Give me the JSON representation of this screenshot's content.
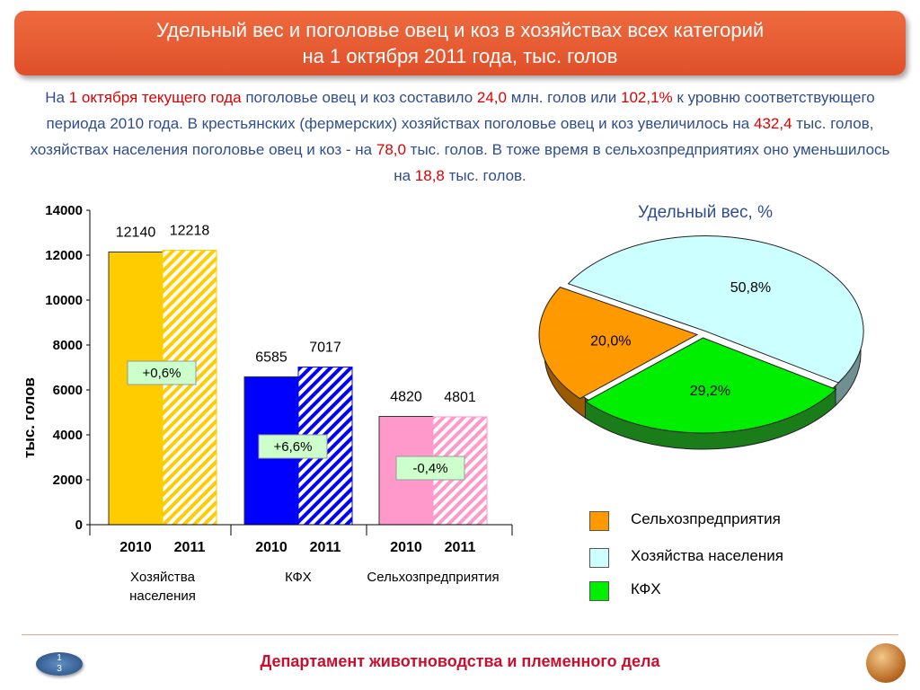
{
  "header": {
    "title_line1": "Удельный вес и поголовье овец и коз в хозяйствах всех категорий",
    "title_line2": "на 1 октября 2011 года, тыс. голов"
  },
  "intro": {
    "p1": "На ",
    "h1": "1 октября текущего года",
    "p2": " поголовье овец и коз составило ",
    "h2": "24,0",
    "p3": " млн. голов или ",
    "h3": "102,1%",
    "p4": " к уровню соответствующего периода 2010 года.  В крестьянских (фермерских) хозяйствах поголовье овец и коз увеличилось на ",
    "h4": "432,4",
    "p5": " тыс. голов, хозяйствах населения поголовье овец и коз - на ",
    "h5": "78,0",
    "p6": " тыс. голов. В тоже время в сельхозпредприятиях оно уменьшилось на ",
    "h6": "18,8",
    "p7": " тыс. голов."
  },
  "chart_data": [
    {
      "type": "bar",
      "ylabel": "тыс. голов",
      "ylim": [
        0,
        14000
      ],
      "yticks": [
        "0",
        "2000",
        "4000",
        "6000",
        "8000",
        "10000",
        "12000",
        "14000"
      ],
      "groups": [
        {
          "name": "Хозяйства населения",
          "name_lines": [
            "Хозяйства",
            "населения"
          ],
          "x": [
            "2010",
            "2011"
          ],
          "values": [
            12140,
            12218
          ],
          "labels": [
            "12140",
            "12218"
          ],
          "change": "+0,6%",
          "color": "#ffcc00"
        },
        {
          "name": "КФХ",
          "name_lines": [
            "КФХ"
          ],
          "x": [
            "2010",
            "2011"
          ],
          "values": [
            6585,
            7017
          ],
          "labels": [
            "6585",
            "7017"
          ],
          "change": "+6,6%",
          "color": "#0000ff"
        },
        {
          "name": "Сельхозпредприятия",
          "name_lines": [
            "Сельхозпредприятия"
          ],
          "x": [
            "2010",
            "2011"
          ],
          "values": [
            4820,
            4801
          ],
          "labels": [
            "4820",
            "4801"
          ],
          "change": "-0,4%",
          "color": "#ff99cc"
        }
      ]
    },
    {
      "type": "pie",
      "title": "Удельный вес, %",
      "slices": [
        {
          "name": "Хозяйства населения",
          "value": 50.8,
          "label": "50,8%",
          "color": "#ccffff"
        },
        {
          "name": "КФХ",
          "value": 29.2,
          "label": "29,2%",
          "color": "#00ee00"
        },
        {
          "name": "Сельхозпредприятия",
          "value": 20.0,
          "label": "20,0%",
          "color": "#ff9900"
        }
      ],
      "legend": [
        {
          "label": "Сельхозпредприятия",
          "color": "#ff9900"
        },
        {
          "label": "Хозяйства населения",
          "color": "#ccffff"
        },
        {
          "label": "КФХ",
          "color": "#00ee00"
        }
      ]
    }
  ],
  "footer": {
    "department": "Департамент животноводства и племенного дела",
    "page_line1": "1",
    "page_line2": "3"
  }
}
